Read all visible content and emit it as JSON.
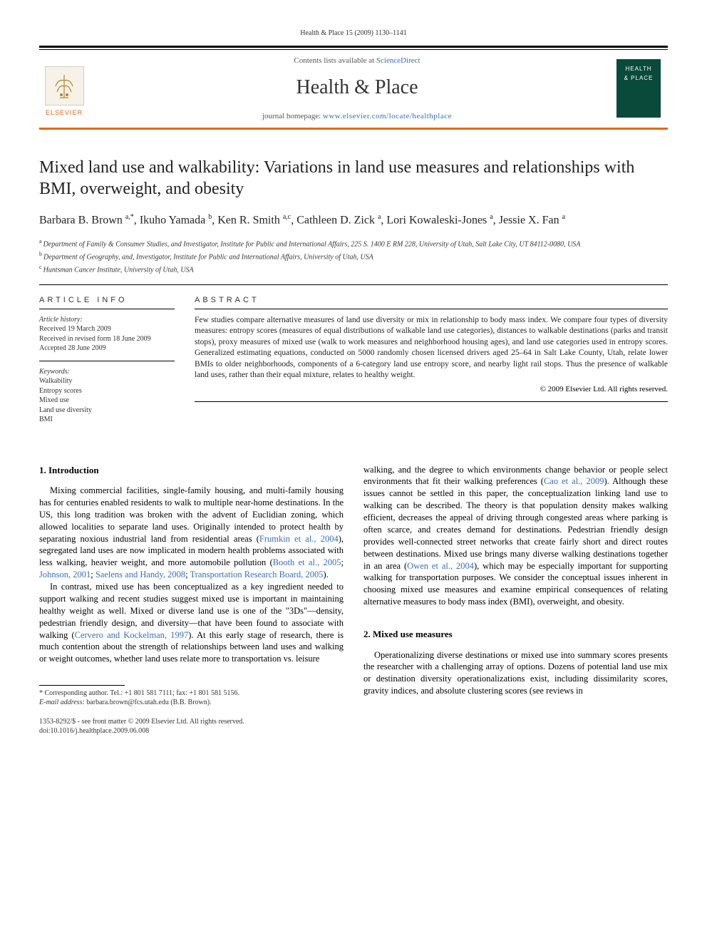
{
  "header": {
    "citation": "Health & Place 15 (2009) 1130–1141",
    "contents_prefix": "Contents lists available at ",
    "contents_link": "ScienceDirect",
    "journal_name": "Health & Place",
    "homepage_prefix": "journal homepage: ",
    "homepage_url": "www.elsevier.com/locate/healthplace",
    "elsevier": "ELSEVIER",
    "cover_line1": "HEALTH",
    "cover_line2": "& PLACE"
  },
  "title": "Mixed land use and walkability: Variations in land use measures and relationships with BMI, overweight, and obesity",
  "authors_html": "Barbara B. Brown <sup>a,*</sup>, Ikuho Yamada <sup>b</sup>, Ken R. Smith <sup>a,c</sup>, Cathleen D. Zick <sup>a</sup>, Lori Kowaleski-Jones <sup>a</sup>, Jessie X. Fan <sup>a</sup>",
  "affiliations": {
    "a": "Department of Family & Consumer Studies, and Investigator, Institute for Public and International Affairs, 225 S. 1400 E RM 228, University of Utah, Salt Lake City, UT 84112-0080, USA",
    "b": "Department of Geography, and, Investigator, Institute for Public and International Affairs, University of Utah, USA",
    "c": "Huntsman Cancer Institute, University of Utah, USA"
  },
  "article_info": {
    "heading": "ARTICLE INFO",
    "history_label": "Article history:",
    "received": "Received 19 March 2009",
    "revised": "Received in revised form 18 June 2009",
    "accepted": "Accepted 28 June 2009",
    "keywords_label": "Keywords:",
    "keywords": [
      "Walkability",
      "Entropy scores",
      "Mixed use",
      "Land use diversity",
      "BMI"
    ]
  },
  "abstract": {
    "heading": "ABSTRACT",
    "text": "Few studies compare alternative measures of land use diversity or mix in relationship to body mass index. We compare four types of diversity measures: entropy scores (measures of equal distributions of walkable land use categories), distances to walkable destinations (parks and transit stops), proxy measures of mixed use (walk to work measures and neighborhood housing ages), and land use categories used in entropy scores. Generalized estimating equations, conducted on 5000 randomly chosen licensed drivers aged 25–64 in Salt Lake County, Utah, relate lower BMIs to older neighborhoods, components of a 6-category land use entropy score, and nearby light rail stops. Thus the presence of walkable land uses, rather than their equal mixture, relates to healthy weight.",
    "copyright": "© 2009 Elsevier Ltd. All rights reserved."
  },
  "sections": {
    "s1": {
      "heading": "1.  Introduction",
      "p1_a": "Mixing commercial facilities, single-family housing, and multi-family housing has for centuries enabled residents to walk to multiple near-home destinations. In the US, this long tradition was broken with the advent of Euclidian zoning, which allowed localities to separate land uses. Originally intended to protect health by separating noxious industrial land from residential areas (",
      "p1_c1": "Frumkin et al., 2004",
      "p1_b": "), segregated land uses are now implicated in modern health problems associated with less walking, heavier weight, and more automobile pollution (",
      "p1_c2": "Booth et al., 2005",
      "p1_c3": "Johnson, 2001",
      "p1_c4": "Saelens and Handy, 2008",
      "p1_c5": "Transportation Research Board, 2005",
      "p1_c": ").",
      "p2_a": "In contrast, mixed use has been conceptualized as a key ingredient needed to support walking and recent studies suggest mixed use is important in maintaining healthy weight as well. Mixed or diverse land use is one of the \"3Ds\"—density, pedestrian friendly design, and diversity—that have been found to associate with walking (",
      "p2_c1": "Cervero and Kockelman, 1997",
      "p2_b": "). At this early stage of research, there is much contention about the strength of relationships between land uses and walking or weight outcomes, whether land uses relate more to transportation vs. leisure",
      "col2_p1_a": "walking, and the degree to which environments change behavior or people select environments that fit their walking preferences (",
      "col2_p1_c1": "Cao et al., 2009",
      "col2_p1_b": "). Although these issues cannot be settled in this paper, the conceptualization linking land use to walking can be described. The theory is that population density makes walking efficient, decreases the appeal of driving through congested areas where parking is often scarce, and creates demand for destinations. Pedestrian friendly design provides well-connected street networks that create fairly short and direct routes between destinations. Mixed use brings many diverse walking destinations together in an area (",
      "col2_p1_c2": "Owen et al., 2004",
      "col2_p1_c": "), which may be especially important for supporting walking for transportation purposes. We consider the conceptual issues inherent in choosing mixed use measures and examine empirical consequences of relating alternative measures to body mass index (BMI), overweight, and obesity."
    },
    "s2": {
      "heading": "2.  Mixed use measures",
      "p1": "Operationalizing diverse destinations or mixed use into summary scores presents the researcher with a challenging array of options. Dozens of potential land use mix or destination diversity operationalizations exist, including dissimilarity scores, gravity indices, and absolute clustering scores (see reviews in"
    }
  },
  "footnote": {
    "corr": "* Corresponding author. Tel.: +1 801 581 7111; fax: +1 801 581 5156.",
    "email_label": "E-mail address:",
    "email": "barbara.brown@fcs.utah.edu (B.B. Brown)."
  },
  "front_matter": {
    "line1": "1353-8292/$ - see front matter © 2009 Elsevier Ltd. All rights reserved.",
    "line2": "doi:10.1016/j.healthplace.2009.06.008"
  },
  "colors": {
    "orange": "#e16a1a",
    "link": "#3a6fb7",
    "cover": "#0a4a3a"
  }
}
